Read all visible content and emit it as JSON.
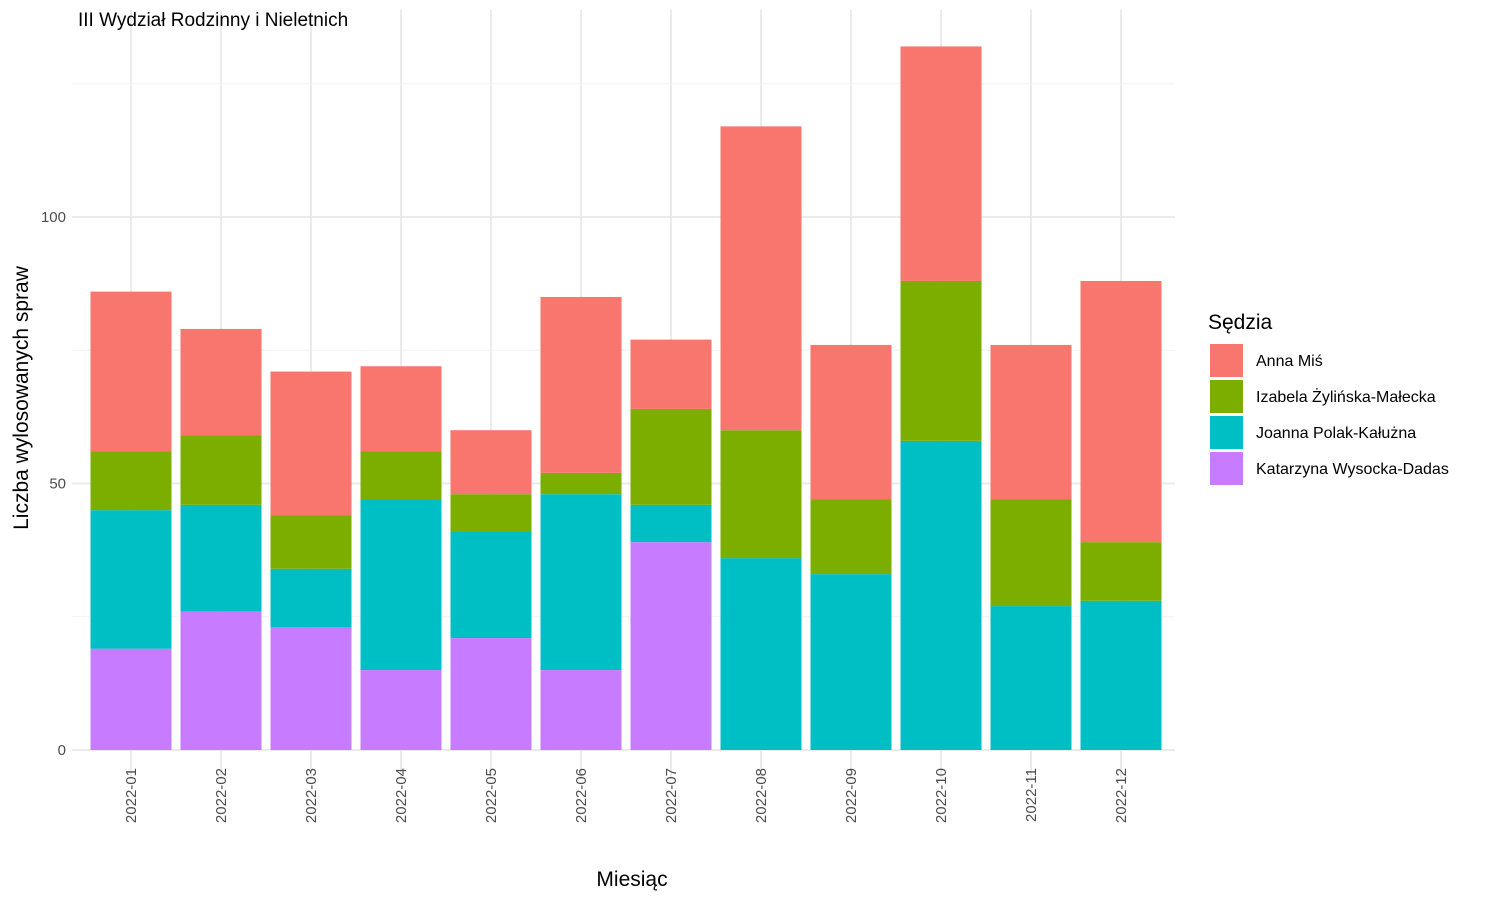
{
  "chart_data": {
    "type": "bar",
    "stacked": true,
    "title": "III Wydział Rodzinny i Nieletnich",
    "xlabel": "Miesiąc",
    "ylabel": "Liczba wylosowanych spraw",
    "ylim": [
      0,
      138
    ],
    "yticks": [
      0,
      50,
      100
    ],
    "grid": true,
    "categories": [
      "2022-01",
      "2022-02",
      "2022-03",
      "2022-04",
      "2022-05",
      "2022-06",
      "2022-07",
      "2022-08",
      "2022-09",
      "2022-10",
      "2022-11",
      "2022-12"
    ],
    "legend": {
      "title": "Sędzia",
      "position": "right"
    },
    "series": [
      {
        "name": "Anna Miś",
        "color": "#F8766D",
        "values": [
          30,
          20,
          27,
          16,
          12,
          33,
          13,
          57,
          29,
          44,
          29,
          49
        ]
      },
      {
        "name": "Izabela Żylińska-Małecka",
        "color": "#7CAE00",
        "values": [
          11,
          13,
          10,
          9,
          7,
          4,
          18,
          24,
          14,
          30,
          20,
          11
        ]
      },
      {
        "name": "Joanna Polak-Kałużna",
        "color": "#00BFC4",
        "values": [
          26,
          20,
          11,
          32,
          20,
          33,
          7,
          36,
          33,
          58,
          27,
          28
        ]
      },
      {
        "name": "Katarzyna Wysocka-Dadas",
        "color": "#C77CFF",
        "values": [
          19,
          26,
          23,
          15,
          21,
          15,
          39,
          0,
          0,
          0,
          0,
          0
        ]
      }
    ],
    "stack_order_bottom_to_top": [
      "Katarzyna Wysocka-Dadas",
      "Joanna Polak-Kałużna",
      "Izabela Żylińska-Małecka",
      "Anna Miś"
    ]
  }
}
